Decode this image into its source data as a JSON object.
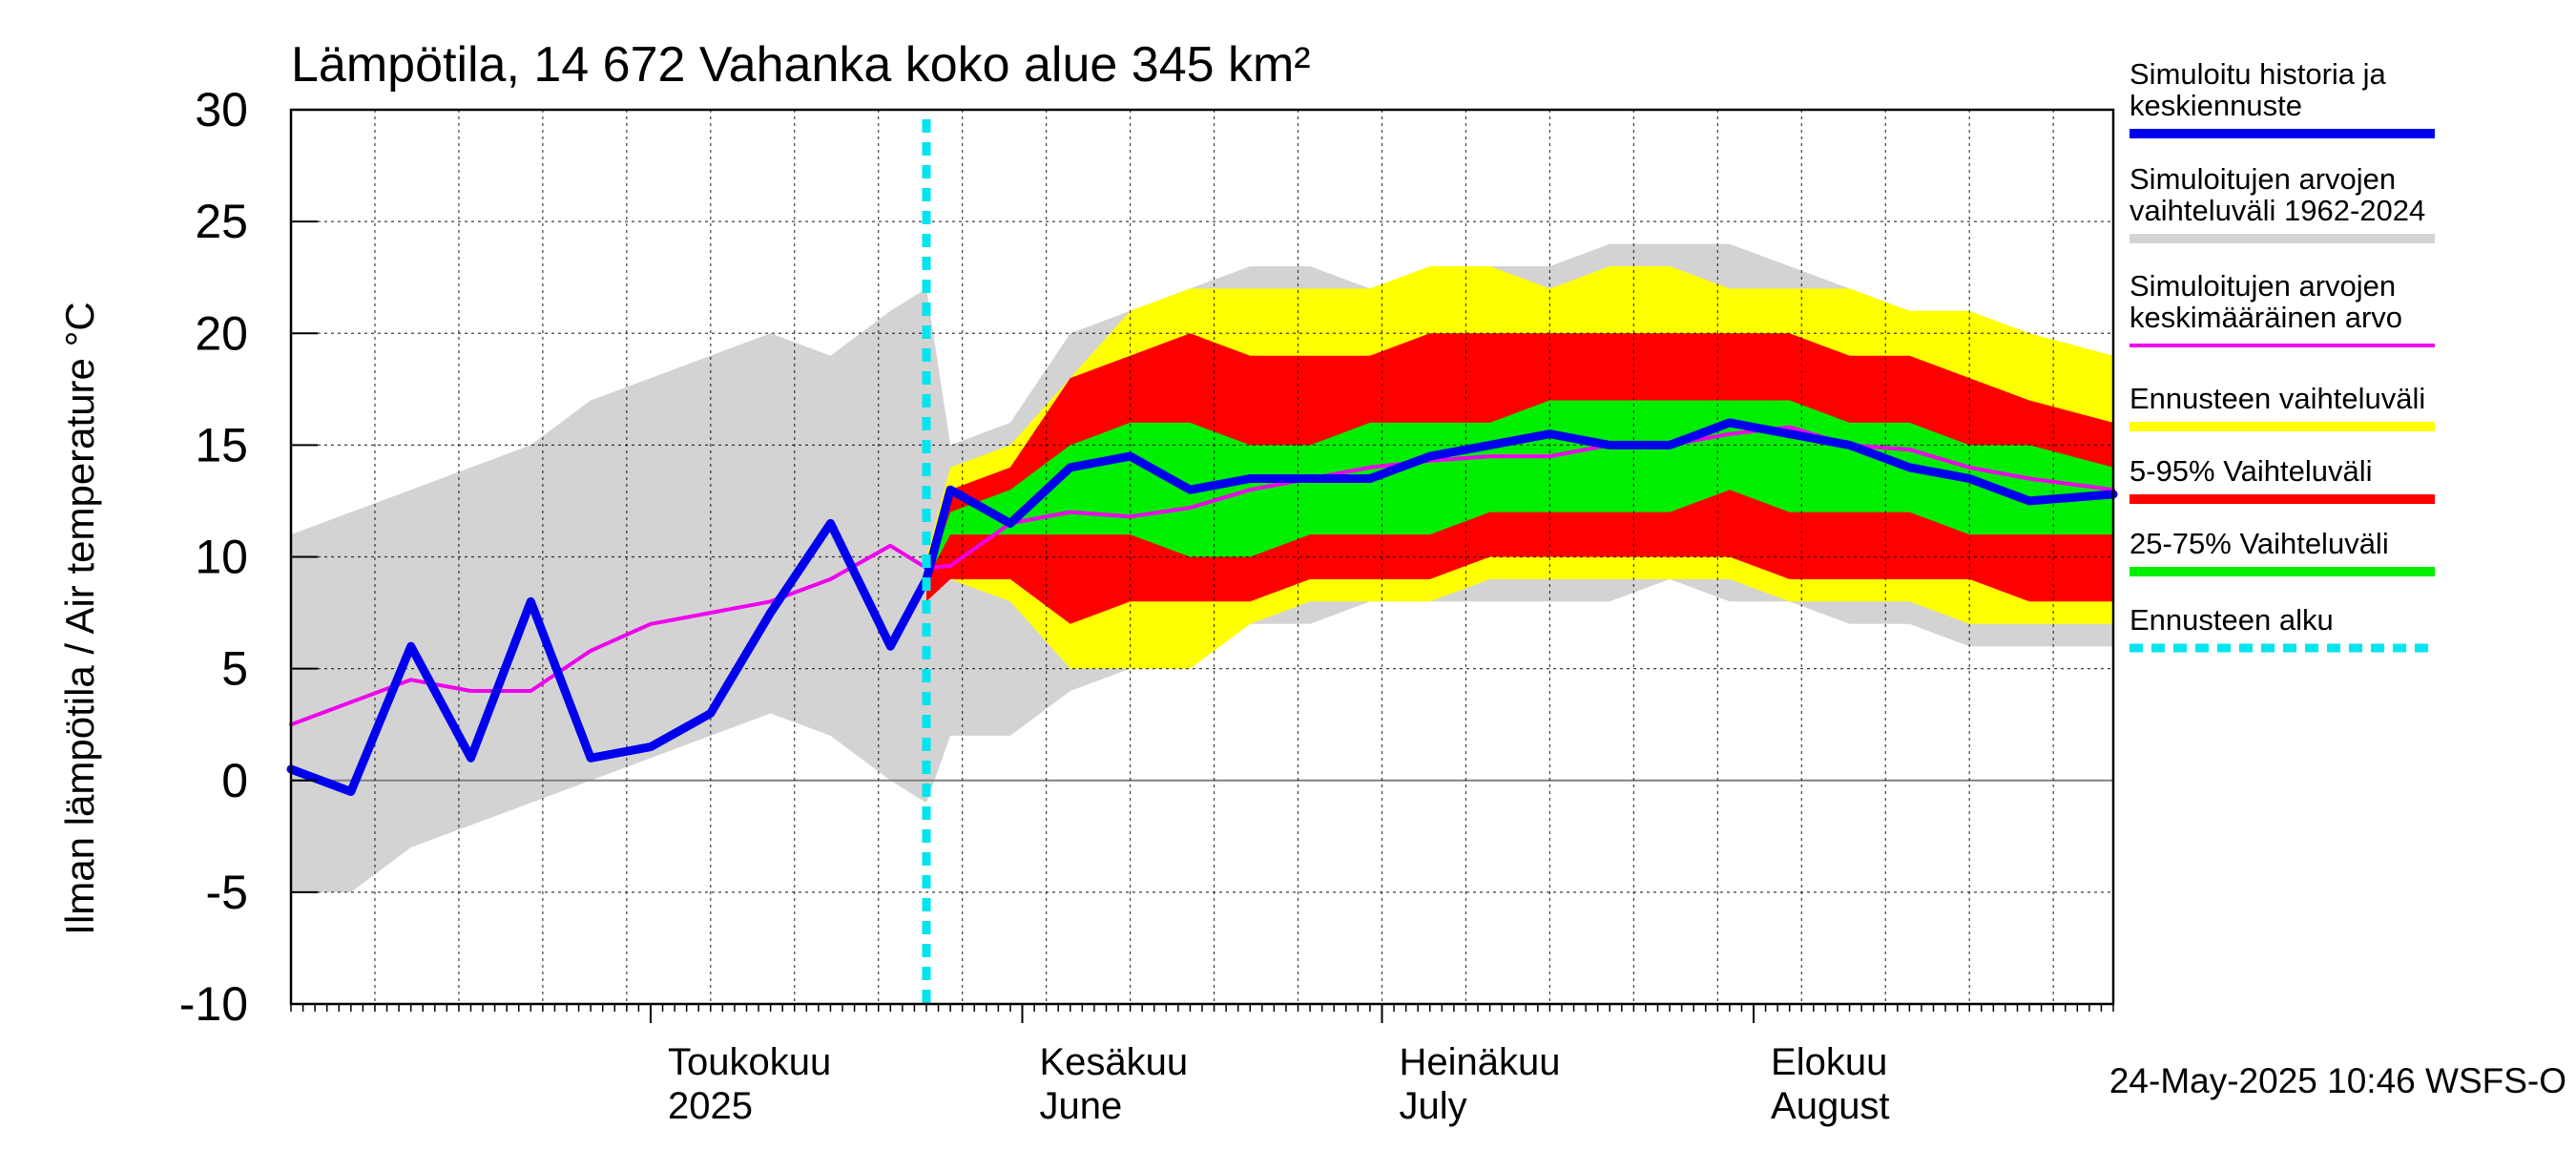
{
  "chart_data": {
    "type": "area",
    "title": "Lämpötila, 14 672 Vahanka koko alue 345 km²",
    "ylabel": "Ilman lämpötila / Air temperature   °C",
    "ylim": [
      -10,
      30
    ],
    "yticks": [
      -10,
      -5,
      0,
      5,
      10,
      15,
      20,
      25,
      30
    ],
    "xlim": [
      "2025-04-01",
      "2025-08-31"
    ],
    "forecast_start": "2025-05-24",
    "grid": true,
    "legend_position": "right",
    "month_labels": [
      {
        "month": "2025-05",
        "line1": "Toukokuu",
        "line2": "2025"
      },
      {
        "month": "2025-06",
        "line1": "Kesäkuu",
        "line2": "June"
      },
      {
        "month": "2025-07",
        "line1": "Heinäkuu",
        "line2": "July"
      },
      {
        "month": "2025-08",
        "line1": "Elokuu",
        "line2": "August"
      }
    ],
    "footer": "24-May-2025 10:46 WSFS-O",
    "colors": {
      "history_range": "#d3d3d3",
      "forecast_range": "#ffff00",
      "p5_95": "#ff0000",
      "p25_75": "#00ee00",
      "mean": "#ee00ee",
      "simulated": "#0000ee",
      "forecast_start": "#00e5ee",
      "zero_line": "#808080"
    },
    "legend": [
      {
        "label": "Simuloitu historia ja keskiennuste",
        "color": "#0000ee",
        "style": "solid"
      },
      {
        "label": "Simuloitujen arvojen vaihteluväli 1962-2024",
        "color": "#d3d3d3",
        "style": "solid"
      },
      {
        "label": "Simuloitujen arvojen keskimääräinen arvo",
        "color": "#ee00ee",
        "style": "thin"
      },
      {
        "label": "Ennusteen vaihteluväli",
        "color": "#ffff00",
        "style": "solid"
      },
      {
        "label": "5-95% Vaihteluväli",
        "color": "#ff0000",
        "style": "solid"
      },
      {
        "label": "25-75% Vaihteluväli",
        "color": "#00ee00",
        "style": "solid"
      },
      {
        "label": "Ennusteen alku",
        "color": "#00e5ee",
        "style": "dashed"
      }
    ],
    "x": [
      "2025-04-01",
      "2025-04-06",
      "2025-04-11",
      "2025-04-16",
      "2025-04-21",
      "2025-04-26",
      "2025-05-01",
      "2025-05-06",
      "2025-05-11",
      "2025-05-16",
      "2025-05-21",
      "2025-05-24",
      "2025-05-26",
      "2025-05-31",
      "2025-06-05",
      "2025-06-10",
      "2025-06-15",
      "2025-06-20",
      "2025-06-25",
      "2025-06-30",
      "2025-07-05",
      "2025-07-10",
      "2025-07-15",
      "2025-07-20",
      "2025-07-25",
      "2025-07-30",
      "2025-08-04",
      "2025-08-09",
      "2025-08-14",
      "2025-08-19",
      "2025-08-24",
      "2025-08-31"
    ],
    "series": [
      {
        "key": "hist_max",
        "values": [
          11,
          12,
          13,
          14,
          15,
          17,
          18,
          19,
          20,
          19,
          21,
          22,
          15,
          16,
          20,
          21,
          22,
          23,
          23,
          22,
          22,
          23,
          23,
          24,
          24,
          24,
          23,
          22,
          21,
          20,
          19,
          19
        ]
      },
      {
        "key": "hist_min",
        "values": [
          -5,
          -5,
          -3,
          -2,
          -1,
          0,
          1,
          2,
          3,
          2,
          0,
          -1,
          2,
          2,
          4,
          5,
          6,
          7,
          7,
          8,
          8,
          8,
          8,
          8,
          9,
          8,
          8,
          7,
          7,
          6,
          6,
          6
        ]
      },
      {
        "key": "fc_max",
        "values": [
          null,
          null,
          null,
          null,
          null,
          null,
          null,
          null,
          null,
          null,
          null,
          10,
          14,
          15,
          18,
          21,
          22,
          22,
          22,
          22,
          23,
          23,
          22,
          23,
          23,
          22,
          22,
          22,
          21,
          21,
          20,
          19
        ]
      },
      {
        "key": "fc_min",
        "values": [
          null,
          null,
          null,
          null,
          null,
          null,
          null,
          null,
          null,
          null,
          null,
          9,
          9,
          8,
          5,
          5,
          5,
          7,
          8,
          8,
          8,
          9,
          9,
          9,
          9,
          9,
          8,
          8,
          8,
          7,
          7,
          7
        ]
      },
      {
        "key": "p95",
        "values": [
          null,
          null,
          null,
          null,
          null,
          null,
          null,
          null,
          null,
          null,
          null,
          9,
          13,
          14,
          18,
          19,
          20,
          19,
          19,
          19,
          20,
          20,
          20,
          20,
          20,
          20,
          20,
          19,
          19,
          18,
          17,
          16
        ]
      },
      {
        "key": "p05",
        "values": [
          null,
          null,
          null,
          null,
          null,
          null,
          null,
          null,
          null,
          null,
          null,
          8,
          9,
          9,
          7,
          8,
          8,
          8,
          9,
          9,
          9,
          10,
          10,
          10,
          10,
          10,
          9,
          9,
          9,
          9,
          8,
          8
        ]
      },
      {
        "key": "p75",
        "values": [
          null,
          null,
          null,
          null,
          null,
          null,
          null,
          null,
          null,
          null,
          null,
          9,
          12,
          13,
          15,
          16,
          16,
          15,
          15,
          16,
          16,
          16,
          17,
          17,
          17,
          17,
          17,
          16,
          16,
          15,
          15,
          14
        ]
      },
      {
        "key": "p25",
        "values": [
          null,
          null,
          null,
          null,
          null,
          null,
          null,
          null,
          null,
          null,
          null,
          9,
          11,
          11,
          11,
          11,
          10,
          10,
          11,
          11,
          11,
          12,
          12,
          12,
          12,
          13,
          12,
          12,
          12,
          11,
          11,
          11
        ]
      },
      {
        "key": "mean",
        "name": "Simuloitujen arvojen keskimääräinen arvo",
        "values": [
          2.5,
          3.5,
          4.5,
          4,
          4,
          5.8,
          7,
          7.5,
          8,
          9,
          10.5,
          9.5,
          9.6,
          11.5,
          12,
          11.8,
          12.2,
          13,
          13.5,
          14,
          14.3,
          14.5,
          14.5,
          15,
          15,
          15.5,
          15.8,
          15,
          14.8,
          14,
          13.5,
          13
        ]
      },
      {
        "key": "simulated",
        "name": "Simuloitu historia ja keskiennuste",
        "values": [
          0.5,
          -0.5,
          6,
          1,
          8,
          1,
          1.5,
          3,
          7.5,
          11.5,
          6,
          9,
          13,
          11.5,
          14,
          14.5,
          13,
          13.5,
          13.5,
          13.5,
          14.5,
          15,
          15.5,
          15,
          15,
          16,
          15.5,
          15,
          14,
          13.5,
          12.5,
          12.8
        ]
      }
    ]
  }
}
